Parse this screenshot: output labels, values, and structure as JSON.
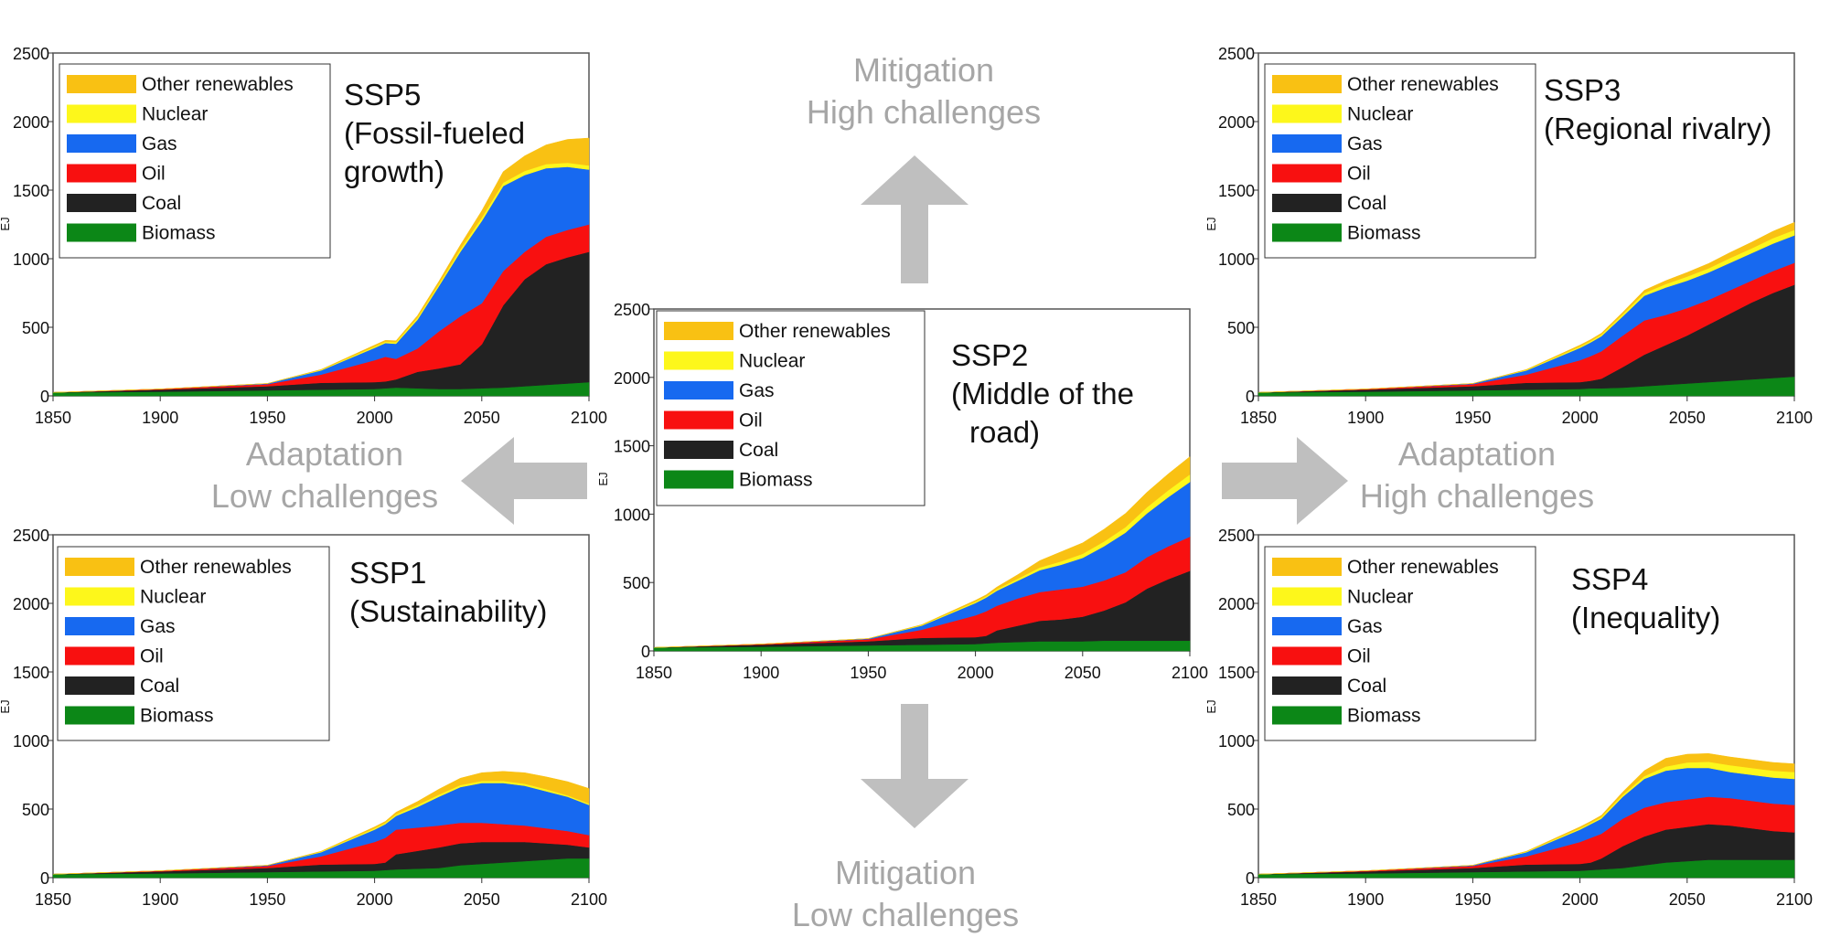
{
  "colors": {
    "Other renewables": "#f9c113",
    "Nuclear": "#fdf71b",
    "Gas": "#1769f0",
    "Oil": "#f81010",
    "Coal": "#222222",
    "Biomass": "#0c8717",
    "arrow": "#bfbfbf"
  },
  "directions": {
    "mitigation_high": [
      "Mitigation",
      "High challenges"
    ],
    "mitigation_low": [
      "Mitigation",
      "Low challenges"
    ],
    "adaptation_low": [
      "Adaptation",
      "Low challenges"
    ],
    "adaptation_high": [
      "Adaptation",
      "High challenges"
    ]
  },
  "chart_data": [
    {
      "id": "ssp5",
      "type": "area",
      "stacked": true,
      "title": [
        "SSP5",
        "(Fossil-fueled",
        "growth)"
      ],
      "ylabel": "EJ",
      "xlim": [
        1850,
        2100
      ],
      "ylim": [
        0,
        2500
      ],
      "xticks": [
        "1850",
        "1900",
        "1950",
        "2000",
        "2050",
        "2100"
      ],
      "yticks": [
        "0",
        "500",
        "1000",
        "1500",
        "2000",
        "2500"
      ],
      "legend": [
        "Other renewables",
        "Nuclear",
        "Gas",
        "Oil",
        "Coal",
        "Biomass"
      ],
      "legend_position": "top-left",
      "x": [
        1850,
        1900,
        1950,
        1975,
        2000,
        2005,
        2010,
        2020,
        2030,
        2040,
        2050,
        2060,
        2070,
        2080,
        2090,
        2100
      ],
      "series": [
        {
          "name": "Biomass",
          "values": [
            25,
            30,
            40,
            45,
            50,
            55,
            60,
            55,
            50,
            50,
            55,
            60,
            70,
            80,
            90,
            100
          ]
        },
        {
          "name": "Coal",
          "values": [
            0,
            15,
            30,
            50,
            50,
            50,
            60,
            120,
            150,
            180,
            320,
            600,
            780,
            880,
            920,
            950
          ]
        },
        {
          "name": "Oil",
          "values": [
            0,
            5,
            15,
            60,
            160,
            180,
            150,
            170,
            270,
            350,
            300,
            250,
            200,
            200,
            200,
            200
          ]
        },
        {
          "name": "Gas",
          "values": [
            0,
            0,
            5,
            30,
            90,
            100,
            110,
            210,
            330,
            470,
            600,
            620,
            560,
            500,
            460,
            400
          ]
        },
        {
          "name": "Nuclear",
          "values": [
            0,
            0,
            0,
            5,
            10,
            10,
            12,
            15,
            15,
            20,
            25,
            25,
            30,
            30,
            30,
            30
          ]
        },
        {
          "name": "Other renewables",
          "values": [
            0,
            0,
            0,
            2,
            10,
            10,
            10,
            15,
            20,
            30,
            50,
            80,
            110,
            140,
            170,
            200
          ]
        }
      ]
    },
    {
      "id": "ssp3",
      "type": "area",
      "stacked": true,
      "title": [
        "SSP3",
        "(Regional rivalry)"
      ],
      "ylabel": "EJ",
      "xlim": [
        1850,
        2100
      ],
      "ylim": [
        0,
        2500
      ],
      "xticks": [
        "1850",
        "1900",
        "1950",
        "2000",
        "2050",
        "2100"
      ],
      "yticks": [
        "0",
        "500",
        "1000",
        "1500",
        "2000",
        "2500"
      ],
      "legend": [
        "Other renewables",
        "Nuclear",
        "Gas",
        "Oil",
        "Coal",
        "Biomass"
      ],
      "legend_position": "top-left",
      "x": [
        1850,
        1900,
        1950,
        1975,
        2000,
        2005,
        2010,
        2020,
        2030,
        2040,
        2050,
        2060,
        2070,
        2080,
        2090,
        2100
      ],
      "series": [
        {
          "name": "Biomass",
          "values": [
            25,
            30,
            40,
            45,
            50,
            55,
            55,
            60,
            70,
            80,
            90,
            100,
            110,
            120,
            130,
            140
          ]
        },
        {
          "name": "Coal",
          "values": [
            0,
            15,
            30,
            50,
            50,
            55,
            70,
            150,
            230,
            290,
            350,
            420,
            490,
            560,
            620,
            670
          ]
        },
        {
          "name": "Oil",
          "values": [
            0,
            5,
            15,
            60,
            160,
            180,
            200,
            230,
            250,
            220,
            200,
            180,
            170,
            160,
            160,
            160
          ]
        },
        {
          "name": "Gas",
          "values": [
            0,
            0,
            5,
            30,
            90,
            100,
            110,
            140,
            180,
            200,
            200,
            200,
            200,
            200,
            200,
            200
          ]
        },
        {
          "name": "Nuclear",
          "values": [
            0,
            0,
            0,
            5,
            10,
            10,
            12,
            15,
            20,
            25,
            30,
            30,
            35,
            35,
            40,
            40
          ]
        },
        {
          "name": "Other renewables",
          "values": [
            0,
            0,
            0,
            2,
            10,
            10,
            10,
            15,
            20,
            25,
            30,
            35,
            40,
            45,
            50,
            55
          ]
        }
      ]
    },
    {
      "id": "ssp2",
      "type": "area",
      "stacked": true,
      "title": [
        "SSP2",
        "(Middle of the",
        "road)"
      ],
      "ylabel": "EJ",
      "xlim": [
        1850,
        2100
      ],
      "ylim": [
        0,
        2500
      ],
      "xticks": [
        "1850",
        "1900",
        "1950",
        "2000",
        "2050",
        "2100"
      ],
      "yticks": [
        "0",
        "500",
        "1000",
        "1500",
        "2000",
        "2500"
      ],
      "legend": [
        "Other renewables",
        "Nuclear",
        "Gas",
        "Oil",
        "Coal",
        "Biomass"
      ],
      "legend_position": "top-left",
      "x": [
        1850,
        1900,
        1950,
        1975,
        2000,
        2005,
        2010,
        2020,
        2030,
        2040,
        2050,
        2060,
        2070,
        2080,
        2090,
        2100
      ],
      "series": [
        {
          "name": "Biomass",
          "values": [
            25,
            30,
            40,
            45,
            50,
            55,
            60,
            65,
            70,
            70,
            70,
            75,
            75,
            75,
            75,
            75
          ]
        },
        {
          "name": "Coal",
          "values": [
            0,
            15,
            30,
            50,
            50,
            55,
            90,
            120,
            150,
            160,
            180,
            220,
            280,
            380,
            450,
            510
          ]
        },
        {
          "name": "Oil",
          "values": [
            0,
            5,
            15,
            60,
            160,
            180,
            180,
            200,
            210,
            220,
            220,
            220,
            220,
            230,
            240,
            250
          ]
        },
        {
          "name": "Gas",
          "values": [
            0,
            0,
            5,
            30,
            90,
            100,
            110,
            130,
            160,
            180,
            210,
            250,
            290,
            320,
            360,
            400
          ]
        },
        {
          "name": "Nuclear",
          "values": [
            0,
            0,
            0,
            5,
            10,
            10,
            12,
            15,
            20,
            25,
            30,
            35,
            40,
            45,
            50,
            55
          ]
        },
        {
          "name": "Other renewables",
          "values": [
            0,
            0,
            0,
            2,
            10,
            10,
            15,
            30,
            50,
            70,
            80,
            90,
            100,
            110,
            120,
            130
          ]
        }
      ]
    },
    {
      "id": "ssp1",
      "type": "area",
      "stacked": true,
      "title": [
        "SSP1",
        "(Sustainability)"
      ],
      "ylabel": "EJ",
      "xlim": [
        1850,
        2100
      ],
      "ylim": [
        0,
        2500
      ],
      "xticks": [
        "1850",
        "1900",
        "1950",
        "2000",
        "2050",
        "2100"
      ],
      "yticks": [
        "0",
        "500",
        "1000",
        "1500",
        "2000",
        "2500"
      ],
      "legend": [
        "Other renewables",
        "Nuclear",
        "Gas",
        "Oil",
        "Coal",
        "Biomass"
      ],
      "legend_position": "top-left",
      "x": [
        1850,
        1900,
        1950,
        1975,
        2000,
        2005,
        2010,
        2020,
        2030,
        2040,
        2050,
        2060,
        2070,
        2080,
        2090,
        2100
      ],
      "series": [
        {
          "name": "Biomass",
          "values": [
            25,
            30,
            40,
            45,
            50,
            55,
            60,
            65,
            70,
            90,
            100,
            110,
            120,
            130,
            140,
            140
          ]
        },
        {
          "name": "Coal",
          "values": [
            0,
            15,
            30,
            50,
            50,
            55,
            110,
            130,
            150,
            160,
            160,
            150,
            140,
            120,
            100,
            80
          ]
        },
        {
          "name": "Oil",
          "values": [
            0,
            5,
            15,
            60,
            160,
            180,
            180,
            170,
            160,
            150,
            140,
            130,
            120,
            110,
            100,
            90
          ]
        },
        {
          "name": "Gas",
          "values": [
            0,
            0,
            5,
            30,
            90,
            100,
            100,
            150,
            210,
            260,
            290,
            300,
            290,
            270,
            250,
            220
          ]
        },
        {
          "name": "Nuclear",
          "values": [
            0,
            0,
            0,
            5,
            10,
            10,
            12,
            15,
            15,
            15,
            15,
            15,
            15,
            15,
            10,
            10
          ]
        },
        {
          "name": "Other renewables",
          "values": [
            0,
            0,
            0,
            2,
            10,
            10,
            15,
            25,
            40,
            50,
            60,
            70,
            80,
            90,
            100,
            110
          ]
        }
      ]
    },
    {
      "id": "ssp4",
      "type": "area",
      "stacked": true,
      "title": [
        "SSP4",
        "(Inequality)"
      ],
      "ylabel": "EJ",
      "xlim": [
        1850,
        2100
      ],
      "ylim": [
        0,
        2500
      ],
      "xticks": [
        "1850",
        "1900",
        "1950",
        "2000",
        "2050",
        "2100"
      ],
      "yticks": [
        "0",
        "500",
        "1000",
        "1500",
        "2000",
        "2500"
      ],
      "legend": [
        "Other renewables",
        "Nuclear",
        "Gas",
        "Oil",
        "Coal",
        "Biomass"
      ],
      "legend_position": "top-left",
      "x": [
        1850,
        1900,
        1950,
        1975,
        2000,
        2005,
        2010,
        2020,
        2030,
        2040,
        2050,
        2060,
        2070,
        2080,
        2090,
        2100
      ],
      "series": [
        {
          "name": "Biomass",
          "values": [
            25,
            30,
            40,
            45,
            50,
            55,
            60,
            70,
            90,
            110,
            120,
            130,
            130,
            130,
            130,
            130
          ]
        },
        {
          "name": "Coal",
          "values": [
            0,
            15,
            30,
            50,
            50,
            55,
            80,
            160,
            210,
            240,
            250,
            260,
            250,
            230,
            210,
            200
          ]
        },
        {
          "name": "Oil",
          "values": [
            0,
            5,
            15,
            60,
            160,
            180,
            180,
            200,
            210,
            200,
            200,
            200,
            200,
            200,
            200,
            200
          ]
        },
        {
          "name": "Gas",
          "values": [
            0,
            0,
            5,
            30,
            90,
            100,
            110,
            160,
            210,
            230,
            230,
            210,
            190,
            190,
            190,
            190
          ]
        },
        {
          "name": "Nuclear",
          "values": [
            0,
            0,
            0,
            5,
            10,
            10,
            12,
            15,
            20,
            30,
            40,
            45,
            50,
            50,
            50,
            50
          ]
        },
        {
          "name": "Other renewables",
          "values": [
            0,
            0,
            0,
            2,
            10,
            10,
            12,
            20,
            40,
            60,
            60,
            60,
            60,
            60,
            60,
            60
          ]
        }
      ]
    }
  ]
}
